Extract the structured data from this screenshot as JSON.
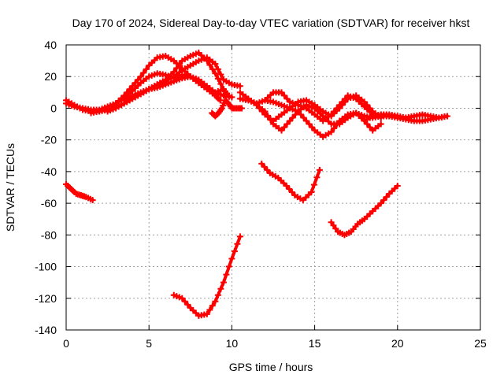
{
  "chart_data": {
    "type": "scatter",
    "title": "Day 170 of 2024, Sidereal Day-to-day VTEC variation (SDTVAR) for receiver hkst",
    "xlabel": "GPS time / hours",
    "ylabel": "SDTVAR / TECUs",
    "xlim": [
      0,
      25
    ],
    "ylim": [
      -140,
      40
    ],
    "xticks": [
      0,
      5,
      10,
      15,
      20,
      25
    ],
    "yticks": [
      40,
      20,
      0,
      -20,
      -40,
      -60,
      -80,
      -100,
      -120,
      -140
    ],
    "grid": true,
    "legend": "none",
    "marker": "+",
    "color": "#ff0000",
    "series": [
      {
        "name": "track-a",
        "x": [
          0.0,
          0.5,
          1.0,
          1.5,
          2.0,
          2.5,
          3.0,
          3.5,
          4.0,
          4.5,
          5.0,
          5.5,
          6.0,
          6.5,
          7.0,
          7.5,
          8.0,
          8.5,
          9.0,
          9.3
        ],
        "y": [
          5,
          2,
          -1,
          -2,
          -2,
          0,
          3,
          8,
          14,
          20,
          27,
          32,
          33,
          30,
          25,
          20,
          16,
          12,
          8,
          5
        ]
      },
      {
        "name": "track-b",
        "x": [
          0.0,
          0.5,
          1.0,
          1.5,
          2.0,
          2.5,
          3.0,
          3.5,
          4.0,
          4.5,
          5.0,
          5.5,
          6.0,
          6.5,
          7.0,
          7.5,
          8.0,
          8.5,
          9.0,
          9.5
        ],
        "y": [
          3,
          1,
          0,
          -1,
          -1,
          1,
          3,
          6,
          11,
          16,
          20,
          22,
          21,
          19,
          21,
          20,
          16,
          13,
          10,
          12
        ]
      },
      {
        "name": "track-c",
        "x": [
          1.5,
          2.0,
          2.5,
          3.0,
          3.5,
          4.0,
          4.5,
          5.0,
          5.5,
          6.0,
          6.5,
          7.0,
          7.5,
          8.0,
          8.5,
          9.0,
          9.5,
          9.8
        ],
        "y": [
          -3,
          -2,
          -1,
          1,
          3,
          6,
          9,
          12,
          15,
          18,
          23,
          30,
          33,
          35,
          30,
          22,
          12,
          8
        ]
      },
      {
        "name": "track-d",
        "x": [
          2.5,
          3.0,
          3.5,
          4.0,
          4.5,
          5.0,
          5.5,
          6.0,
          6.5,
          7.0,
          7.5,
          8.0,
          8.5,
          9.0,
          9.5,
          10.0,
          10.5
        ],
        "y": [
          -2,
          0,
          3,
          6,
          9,
          12,
          15,
          17,
          20,
          24,
          27,
          30,
          32,
          28,
          18,
          15,
          14
        ]
      },
      {
        "name": "track-e",
        "x": [
          3.5,
          4.0,
          4.5,
          5.0,
          5.5,
          6.0,
          6.5,
          7.0,
          7.5,
          8.0,
          8.5,
          9.0,
          9.5,
          10.0
        ],
        "y": [
          5,
          8,
          10,
          12,
          13,
          15,
          17,
          19,
          20,
          18,
          14,
          10,
          8,
          7
        ]
      },
      {
        "name": "track-f",
        "x": [
          8.8,
          9.0,
          9.2,
          9.4,
          9.6,
          9.8,
          10.0,
          10.3,
          10.6
        ],
        "y": [
          -3,
          -5,
          -3,
          0,
          5,
          3,
          0,
          0,
          0
        ]
      },
      {
        "name": "track-g",
        "x": [
          10.5,
          11.0,
          11.5,
          12.0,
          12.5,
          13.0,
          13.5,
          14.0,
          14.5,
          15.0,
          15.5,
          16.0,
          16.5,
          17.0,
          17.5,
          18.0,
          18.5,
          19.0,
          19.5,
          20.0
        ],
        "y": [
          10,
          6,
          2,
          -4,
          -8,
          -4,
          0,
          -2,
          -8,
          -14,
          -18,
          -15,
          -8,
          -4,
          -3,
          -5,
          -6,
          -5,
          -5,
          -5
        ]
      },
      {
        "name": "track-h",
        "x": [
          11.5,
          12.0,
          12.5,
          13.0,
          13.5,
          14.0,
          14.5,
          15.0,
          15.5,
          16.0,
          16.5,
          17.0,
          17.5,
          18.0,
          18.5,
          19.0
        ],
        "y": [
          2,
          -2,
          -10,
          -14,
          -8,
          -2,
          2,
          0,
          -5,
          -10,
          -10,
          -6,
          -3,
          -8,
          -14,
          -10
        ]
      },
      {
        "name": "track-i",
        "x": [
          10.5,
          11.0,
          11.5,
          12.0,
          12.5,
          13.0,
          13.5,
          14.0,
          14.5,
          15.0,
          15.5,
          16.0,
          16.5,
          17.0,
          17.5,
          18.0,
          18.5
        ],
        "y": [
          6,
          5,
          3,
          5,
          10,
          10,
          4,
          2,
          0,
          -4,
          -8,
          -4,
          2,
          8,
          6,
          1,
          -4
        ]
      },
      {
        "name": "track-j",
        "x": [
          12.0,
          12.5,
          13.0,
          13.5,
          14.0,
          14.5,
          15.0,
          15.5,
          16.0,
          16.5,
          17.0,
          17.5,
          18.0,
          18.5,
          19.0
        ],
        "y": [
          5,
          4,
          2,
          0,
          4,
          5,
          2,
          -2,
          -5,
          0,
          6,
          8,
          4,
          -2,
          -6
        ]
      },
      {
        "name": "track-k",
        "x": [
          18.0,
          18.5,
          19.0,
          19.5,
          20.0,
          20.5,
          21.0,
          21.5,
          22.0,
          22.5,
          23.0
        ],
        "y": [
          -8,
          -5,
          -4,
          -5,
          -6,
          -7,
          -8,
          -8,
          -7,
          -6,
          -5
        ]
      },
      {
        "name": "track-l",
        "x": [
          19.0,
          19.5,
          20.0,
          20.5,
          21.0,
          21.5,
          22.0,
          22.5,
          23.0
        ],
        "y": [
          -4,
          -4,
          -5,
          -6,
          -5,
          -4,
          -5,
          -6,
          -5
        ]
      },
      {
        "name": "track-m",
        "x": [
          0.0,
          0.3,
          0.6,
          0.9,
          1.2,
          1.6
        ],
        "y": [
          -48,
          -51,
          -54,
          -55,
          -56,
          -58
        ]
      },
      {
        "name": "track-n",
        "x": [
          6.5,
          7.0,
          7.5,
          8.0,
          8.5,
          9.0,
          9.5,
          10.0,
          10.5
        ],
        "y": [
          -118,
          -120,
          -126,
          -131,
          -130,
          -122,
          -110,
          -95,
          -81
        ]
      },
      {
        "name": "track-o",
        "x": [
          11.8,
          12.3,
          12.8,
          13.3,
          13.8,
          14.3,
          14.8,
          15.3
        ],
        "y": [
          -35,
          -41,
          -44,
          -49,
          -55,
          -58,
          -53,
          -39
        ]
      },
      {
        "name": "track-p",
        "x": [
          16.0,
          16.4,
          16.8,
          17.2,
          17.6,
          18.0,
          18.5,
          19.0,
          19.5,
          20.0
        ],
        "y": [
          -72,
          -78,
          -80,
          -78,
          -73,
          -70,
          -65,
          -60,
          -54,
          -49
        ]
      }
    ]
  }
}
